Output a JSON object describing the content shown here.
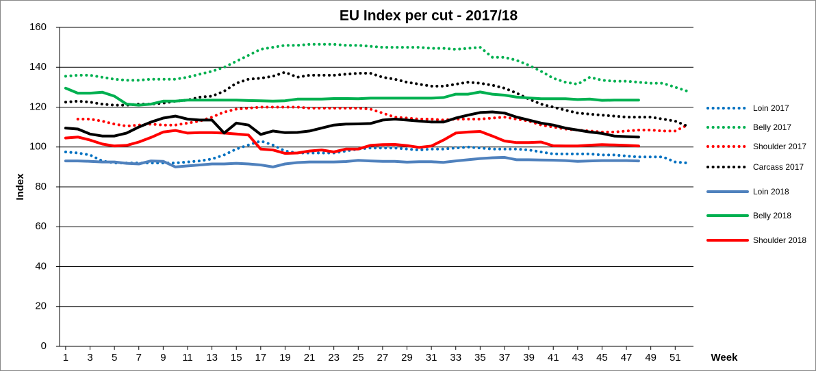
{
  "chart_data": {
    "type": "line",
    "title": "EU Index per cut - 2017/18",
    "x_label": "Week",
    "y_label": "Index",
    "x": [
      1,
      2,
      3,
      4,
      5,
      6,
      7,
      8,
      9,
      10,
      11,
      12,
      13,
      14,
      15,
      16,
      17,
      18,
      19,
      20,
      21,
      22,
      23,
      24,
      25,
      26,
      27,
      28,
      29,
      30,
      31,
      32,
      33,
      34,
      35,
      36,
      37,
      38,
      39,
      40,
      41,
      42,
      43,
      44,
      45,
      46,
      47,
      48,
      49,
      50,
      51,
      52
    ],
    "xlim": [
      0.5,
      52.5
    ],
    "xticks": [
      1,
      3,
      5,
      7,
      9,
      11,
      13,
      15,
      17,
      19,
      21,
      23,
      25,
      27,
      29,
      31,
      33,
      35,
      37,
      39,
      41,
      43,
      45,
      47,
      49,
      51
    ],
    "ylim": [
      0,
      160
    ],
    "yticks": [
      0,
      20,
      40,
      60,
      80,
      100,
      120,
      140,
      160
    ],
    "grid": true,
    "series": [
      {
        "name": "Loin 2017",
        "color": "#0070c0",
        "style": "dotted",
        "values": [
          97.5,
          97,
          96,
          93,
          92,
          92,
          92,
          92,
          92,
          92,
          92.5,
          93,
          94,
          96,
          99,
          101,
          103,
          101,
          98,
          97,
          97,
          97,
          97,
          98,
          99,
          99.5,
          99.5,
          99.5,
          99,
          98.5,
          99,
          99,
          99.5,
          100,
          99.5,
          99,
          99,
          99,
          98.5,
          97.5,
          96.5,
          96.5,
          96.5,
          96.5,
          96,
          96,
          95.5,
          95,
          95,
          95,
          92.5,
          92
        ]
      },
      {
        "name": "Belly 2017",
        "color": "#00b050",
        "style": "dotted",
        "values": [
          135.5,
          136,
          136,
          135,
          134,
          133.5,
          133.5,
          134,
          134,
          134,
          135,
          136.5,
          138,
          140,
          143,
          146,
          149,
          150,
          151,
          151,
          151.5,
          151.5,
          151.5,
          151,
          151,
          150.5,
          150,
          150,
          150,
          150,
          149.5,
          149.5,
          149,
          149.5,
          150,
          145,
          145,
          143.5,
          141,
          138,
          134.5,
          132.5,
          131.5,
          135,
          133.5,
          133,
          133,
          132.5,
          132,
          132,
          130,
          128
        ]
      },
      {
        "name": "Shoulder 2017",
        "color": "#ff0000",
        "style": "dotted",
        "values": [
          null,
          114,
          114,
          113,
          111.5,
          110.5,
          111,
          111.5,
          111,
          111,
          112,
          113,
          115,
          117.5,
          119,
          119.5,
          120,
          120,
          120,
          120,
          119.5,
          119.5,
          119.5,
          119.5,
          119.5,
          119,
          117,
          115,
          114.5,
          114,
          114,
          113.5,
          114,
          114,
          114,
          114.5,
          115,
          114,
          113,
          111,
          110,
          109,
          108.5,
          108,
          107.5,
          107.5,
          108,
          108.5,
          108.5,
          108,
          108,
          111
        ]
      },
      {
        "name": "Carcass 2017",
        "color": "#000000",
        "style": "dotted",
        "values": [
          122.5,
          123,
          122.5,
          121.5,
          121,
          121,
          121.5,
          121.5,
          122,
          123,
          123.5,
          125,
          125.5,
          128,
          132,
          134,
          134.5,
          135.5,
          137.5,
          135,
          136,
          136,
          136,
          136.5,
          137,
          137,
          135,
          134,
          132.5,
          131.5,
          130.5,
          130.5,
          131.5,
          132.5,
          132,
          131,
          129.5,
          127,
          124,
          121.5,
          120,
          118.5,
          117,
          116.5,
          116,
          115.5,
          115,
          115,
          115,
          114,
          113,
          110.5
        ]
      },
      {
        "name": "Loin 2018",
        "color": "#4f81bd",
        "style": "solid",
        "values": [
          93,
          93,
          92.8,
          92.5,
          92.5,
          91.8,
          91.5,
          93,
          92.8,
          90,
          90.5,
          91,
          91.5,
          91.5,
          91.8,
          91.5,
          91,
          90,
          91.5,
          92.2,
          92.5,
          92.5,
          92.5,
          92.7,
          93.3,
          93,
          92.8,
          92.8,
          92.4,
          92.6,
          92.6,
          92.3,
          93,
          93.6,
          94.2,
          94.6,
          94.8,
          93.6,
          93.6,
          93.5,
          93.4,
          93.2,
          92.8,
          93,
          93.2,
          93.2,
          93.2,
          93,
          null,
          null,
          null,
          null
        ]
      },
      {
        "name": "Belly 2018",
        "color": "#00b050",
        "style": "solid",
        "values": [
          129.5,
          127,
          127,
          127.5,
          125.5,
          121.5,
          121,
          121.5,
          123,
          123,
          123.5,
          123.5,
          123.5,
          123.5,
          123.5,
          123.3,
          123.2,
          123,
          123.2,
          124,
          124,
          124,
          124.3,
          124.3,
          124.2,
          124.5,
          124.5,
          124.5,
          124.5,
          124.5,
          124.5,
          124.8,
          126.5,
          126.5,
          127.6,
          126.5,
          126,
          125,
          124.6,
          124.2,
          124.2,
          124.2,
          123.8,
          124,
          123.4,
          123.5,
          123.5,
          123.5,
          null,
          null,
          null,
          null
        ]
      },
      {
        "name": "Shoulder 2018",
        "color": "#ff0000",
        "style": "solid",
        "values": [
          104.5,
          105,
          103.5,
          101.5,
          100.5,
          100.8,
          102.5,
          104.8,
          107.5,
          108.3,
          107,
          107.2,
          107.2,
          107,
          106.5,
          106,
          99,
          98.5,
          96.8,
          97,
          98,
          98.5,
          97.5,
          99,
          99,
          100.8,
          101.2,
          101.3,
          100.7,
          99.8,
          100.5,
          103.5,
          107,
          107.5,
          107.8,
          105.5,
          103,
          102.2,
          102.2,
          102.5,
          100.6,
          100.5,
          100.5,
          100.9,
          101.2,
          101,
          100.8,
          100.5,
          null,
          null,
          null,
          null
        ]
      },
      {
        "color": "#000000",
        "style": "solid",
        "values": [
          109.5,
          109,
          106.5,
          105.5,
          105.5,
          107,
          110,
          112.5,
          114.5,
          115.5,
          114,
          113.5,
          113.5,
          107,
          112,
          111,
          106.3,
          108,
          107.2,
          107.3,
          108,
          109.5,
          111,
          111.5,
          111.6,
          111.8,
          113.5,
          114,
          113.5,
          113,
          112.5,
          112.5,
          114.5,
          116,
          117.3,
          117.6,
          117,
          115,
          113.5,
          112,
          111,
          109.5,
          108.5,
          107.5,
          106.8,
          105.5,
          105.2,
          105,
          null,
          null,
          null,
          null
        ]
      }
    ]
  }
}
